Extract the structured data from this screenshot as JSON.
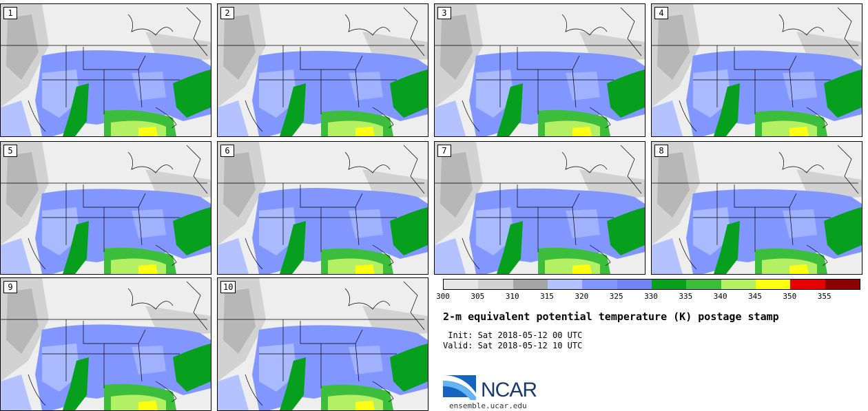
{
  "figure": {
    "title": "2-m equivalent potential temperature (K) postage stamp",
    "init_label": " Init:",
    "init_value": "Sat 2018-05-12 00 UTC",
    "valid_label": "Valid:",
    "valid_value": "Sat 2018-05-12 10 UTC"
  },
  "members": [
    {
      "label": "1"
    },
    {
      "label": "2"
    },
    {
      "label": "3"
    },
    {
      "label": "4"
    },
    {
      "label": "5"
    },
    {
      "label": "6"
    },
    {
      "label": "7"
    },
    {
      "label": "8"
    },
    {
      "label": "9"
    },
    {
      "label": "10"
    }
  ],
  "colorbar": {
    "ticks": [
      "300",
      "305",
      "310",
      "315",
      "320",
      "325",
      "330",
      "335",
      "340",
      "345",
      "350",
      "355"
    ],
    "colors": [
      "#e6e6e6",
      "#d2d2d2",
      "#a5a5a5",
      "#b4c3ff",
      "#8296ff",
      "#7384f5",
      "#06a01e",
      "#3cbe3c",
      "#b4f064",
      "#ffff14",
      "#e60000",
      "#8c0000"
    ]
  },
  "palette": {
    "land_cold": "#eeeeee",
    "terrain_gray": "#d2d2d2",
    "terrain_dark": "#a5a5a5",
    "ocean_west": "#b4c3ff",
    "theta_320": "#8296ff",
    "theta_315": "#b4c3ff",
    "theta_335": "#06a01e",
    "theta_340": "#3cbe3c",
    "theta_345": "#b4f064",
    "theta_350": "#ffff14"
  },
  "branding": {
    "logo_text": "NCAR",
    "url": "ensemble.ucar.edu"
  }
}
